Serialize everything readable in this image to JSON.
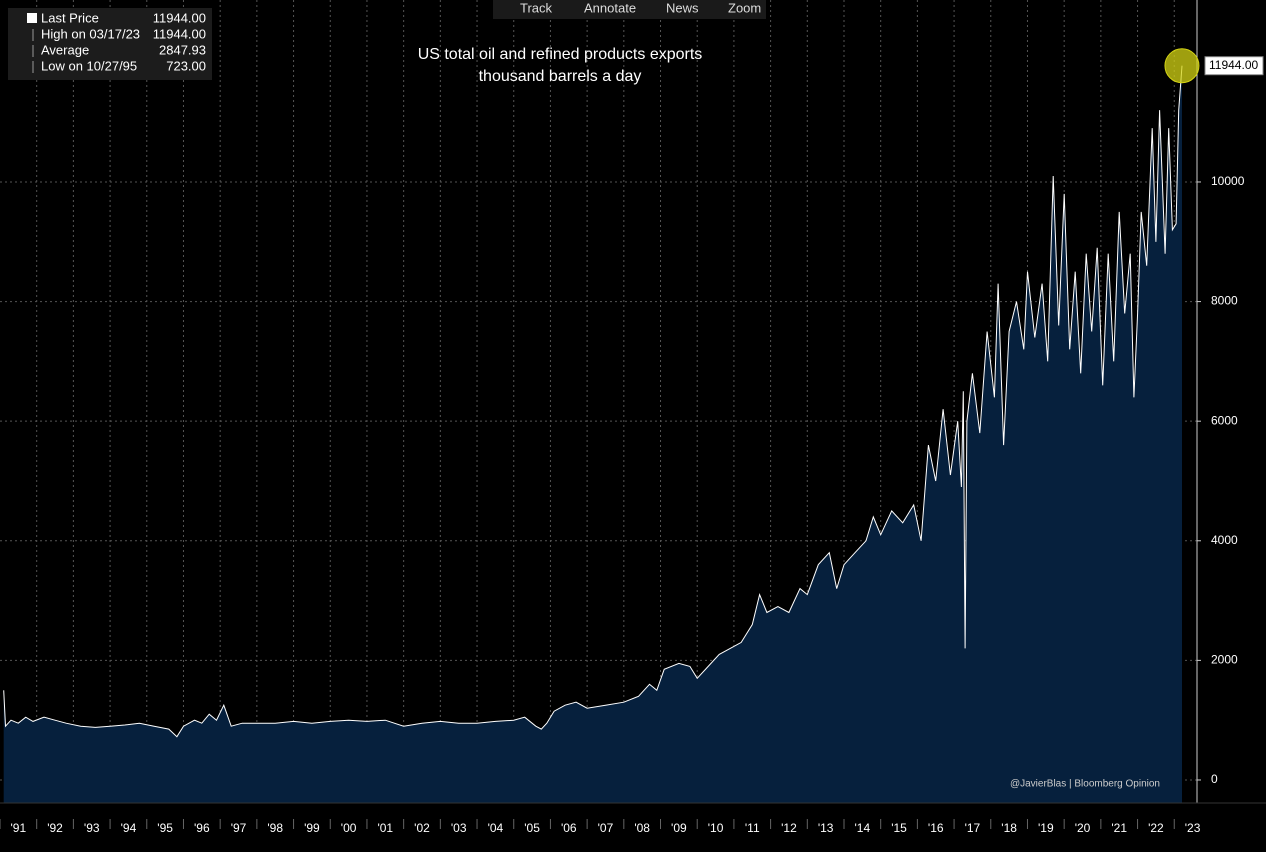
{
  "toolbar": [
    "Track",
    "Annotate",
    "News",
    "Zoom"
  ],
  "chart_data": {
    "type": "area",
    "title": "US total oil and refined products exports",
    "subtitle": "thousand barrels a day",
    "credit": "@JavierBlas | Bloomberg Opinion",
    "stats": {
      "names": [
        "Last Price",
        "High on 03/17/23",
        "Average",
        "Low on 10/27/95"
      ],
      "values": [
        11944,
        11944,
        2847.93,
        723
      ],
      "value_labels": [
        "11944.00",
        "11944.00",
        "2847.93",
        "723.00"
      ]
    },
    "x": [
      1991.1,
      1991.15,
      1991.3,
      1991.5,
      1991.7,
      1991.9,
      1992.2,
      1992.5,
      1992.8,
      1993.2,
      1993.6,
      1994.0,
      1994.4,
      1994.8,
      1995.2,
      1995.6,
      1995.82,
      1996.0,
      1996.3,
      1996.5,
      1996.7,
      1996.9,
      1997.1,
      1997.3,
      1997.6,
      1998.0,
      1998.5,
      1999.0,
      1999.5,
      2000.0,
      2000.5,
      2001.0,
      2001.5,
      2002.0,
      2002.5,
      2003.0,
      2003.5,
      2004.0,
      2004.5,
      2005.0,
      2005.3,
      2005.6,
      2005.75,
      2005.9,
      2006.1,
      2006.4,
      2006.7,
      2007.0,
      2007.5,
      2008.0,
      2008.4,
      2008.7,
      2008.9,
      2009.1,
      2009.5,
      2009.8,
      2010.0,
      2010.3,
      2010.6,
      2010.9,
      2011.2,
      2011.5,
      2011.7,
      2011.9,
      2012.2,
      2012.5,
      2012.8,
      2013.0,
      2013.3,
      2013.6,
      2013.8,
      2014.0,
      2014.3,
      2014.6,
      2014.8,
      2015.0,
      2015.3,
      2015.6,
      2015.9,
      2016.1,
      2016.3,
      2016.5,
      2016.7,
      2016.9,
      2017.1,
      2017.2,
      2017.25,
      2017.3,
      2017.35,
      2017.5,
      2017.7,
      2017.9,
      2018.1,
      2018.2,
      2018.35,
      2018.5,
      2018.7,
      2018.9,
      2019.0,
      2019.2,
      2019.4,
      2019.55,
      2019.7,
      2019.85,
      2020.0,
      2020.15,
      2020.3,
      2020.45,
      2020.6,
      2020.75,
      2020.9,
      2021.05,
      2021.2,
      2021.35,
      2021.5,
      2021.65,
      2021.8,
      2021.9,
      2022.0,
      2022.1,
      2022.25,
      2022.4,
      2022.5,
      2022.6,
      2022.75,
      2022.85,
      2022.95,
      2023.05,
      2023.12,
      2023.21
    ],
    "series": [
      {
        "name": "Last Price",
        "color": "#ffffff",
        "fill": "#06203d",
        "values": [
          1500,
          900,
          1000,
          950,
          1050,
          980,
          1050,
          1000,
          950,
          900,
          880,
          900,
          920,
          950,
          900,
          850,
          723,
          900,
          1000,
          950,
          1100,
          1000,
          1250,
          900,
          950,
          950,
          950,
          980,
          950,
          980,
          1000,
          980,
          1000,
          900,
          950,
          980,
          950,
          950,
          980,
          1000,
          1050,
          900,
          850,
          950,
          1150,
          1250,
          1300,
          1200,
          1250,
          1300,
          1400,
          1600,
          1500,
          1850,
          1950,
          1900,
          1700,
          1900,
          2100,
          2200,
          2300,
          2600,
          3100,
          2800,
          2900,
          2800,
          3200,
          3100,
          3600,
          3800,
          3200,
          3600,
          3800,
          4000,
          4400,
          4100,
          4500,
          4300,
          4600,
          4000,
          5600,
          5000,
          6200,
          5100,
          6000,
          4900,
          6500,
          2200,
          6000,
          6800,
          5800,
          7500,
          6400,
          8300,
          5600,
          7500,
          8000,
          7200,
          8500,
          7400,
          8300,
          7000,
          10100,
          7600,
          9800,
          7200,
          8500,
          6800,
          8800,
          7500,
          8900,
          6600,
          8800,
          7000,
          9500,
          7800,
          8800,
          6400,
          7800,
          9500,
          8600,
          10900,
          9000,
          11200,
          8800,
          10900,
          9200,
          9300,
          11200,
          11944
        ]
      }
    ],
    "xlim": [
      1991,
      2023.62
    ],
    "xticks": [
      {
        "value": 1991,
        "label": "'91"
      },
      {
        "value": 1992,
        "label": "'92"
      },
      {
        "value": 1993,
        "label": "'93"
      },
      {
        "value": 1994,
        "label": "'94"
      },
      {
        "value": 1995,
        "label": "'95"
      },
      {
        "value": 1996,
        "label": "'96"
      },
      {
        "value": 1997,
        "label": "'97"
      },
      {
        "value": 1998,
        "label": "'98"
      },
      {
        "value": 1999,
        "label": "'99"
      },
      {
        "value": 2000,
        "label": "'00"
      },
      {
        "value": 2001,
        "label": "'01"
      },
      {
        "value": 2002,
        "label": "'02"
      },
      {
        "value": 2003,
        "label": "'03"
      },
      {
        "value": 2004,
        "label": "'04"
      },
      {
        "value": 2005,
        "label": "'05"
      },
      {
        "value": 2006,
        "label": "'06"
      },
      {
        "value": 2007,
        "label": "'07"
      },
      {
        "value": 2008,
        "label": "'08"
      },
      {
        "value": 2009,
        "label": "'09"
      },
      {
        "value": 2010,
        "label": "'10"
      },
      {
        "value": 2011,
        "label": "'11"
      },
      {
        "value": 2012,
        "label": "'12"
      },
      {
        "value": 2013,
        "label": "'13"
      },
      {
        "value": 2014,
        "label": "'14"
      },
      {
        "value": 2015,
        "label": "'15"
      },
      {
        "value": 2016,
        "label": "'16"
      },
      {
        "value": 2017,
        "label": "'17"
      },
      {
        "value": 2018,
        "label": "'18"
      },
      {
        "value": 2019,
        "label": "'19"
      },
      {
        "value": 2020,
        "label": "'20"
      },
      {
        "value": 2021,
        "label": "'21"
      },
      {
        "value": 2022,
        "label": "'22"
      },
      {
        "value": 2023,
        "label": "'23"
      }
    ],
    "ylim": [
      -385,
      13043
    ],
    "yticks": [
      0,
      2000,
      4000,
      6000,
      8000,
      10000
    ],
    "grid": true,
    "highlight_color": "#d4d414"
  }
}
